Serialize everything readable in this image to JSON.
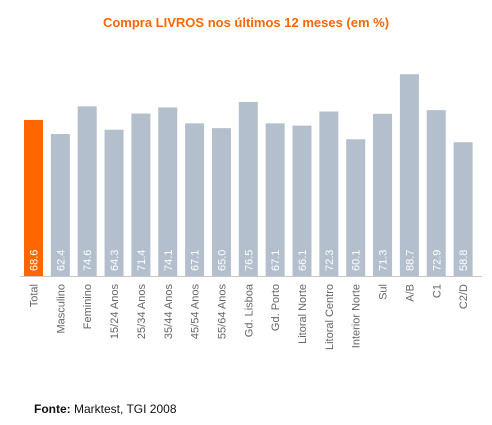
{
  "chart_data": {
    "type": "bar",
    "title": "Compra LIVROS nos últimos 12 meses (em %)",
    "xlabel": "",
    "ylabel": "",
    "categories": [
      "Total",
      "Masculino",
      "Feminino",
      "15/24 Anos",
      "25/34 Anos",
      "35/44 Anos",
      "45/54 Anos",
      "55/64 Anos",
      "Gd. Lisboa",
      "Gd. Porto",
      "Litoral Norte",
      "Litoral Centro",
      "Interior Norte",
      "Sul",
      "A/B",
      "C1",
      "C2/D"
    ],
    "values": [
      68.6,
      62.4,
      74.6,
      64.3,
      71.4,
      74.1,
      67.1,
      65.0,
      76.5,
      67.1,
      66.1,
      72.3,
      60.1,
      71.3,
      88.7,
      72.9,
      58.8
    ],
    "value_labels": [
      "68.6",
      "62.4",
      "74.6",
      "64.3",
      "71.4",
      "74.1",
      "67.1",
      "65.0",
      "76.5",
      "67.1",
      "66.1",
      "72.3",
      "60.1",
      "71.3",
      "88.7",
      "72.9",
      "58.8"
    ],
    "highlight_index": 0,
    "grid": false,
    "legend": "none"
  },
  "colors": {
    "title": "#ff6600",
    "highlight_bar": "#ff6600",
    "bar": "#b3bfcc",
    "value_label": "#ffffff",
    "axis": "#c8c8c8",
    "tick_label": "#666666"
  },
  "source": {
    "label": "Fonte:",
    "text": "Marktest, TGI 2008"
  }
}
